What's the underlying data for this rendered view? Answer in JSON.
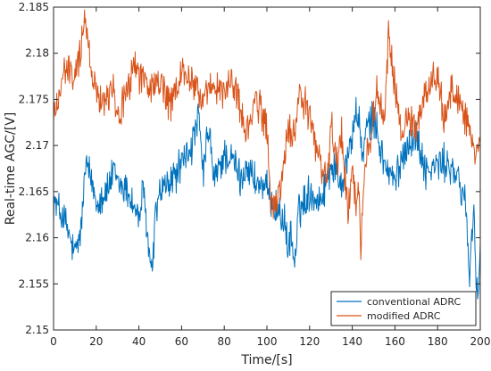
{
  "chart_data": {
    "type": "line",
    "xlabel": "Time/[s]",
    "ylabel": "Real-time AGC/[V]",
    "xlim": [
      0,
      200
    ],
    "ylim": [
      2.15,
      2.185
    ],
    "xticks": [
      0,
      20,
      40,
      60,
      80,
      100,
      120,
      140,
      160,
      180,
      200
    ],
    "yticks": [
      2.15,
      2.155,
      2.16,
      2.165,
      2.17,
      2.175,
      2.18,
      2.185
    ],
    "xtick_labels": [
      "0",
      "20",
      "40",
      "60",
      "80",
      "100",
      "120",
      "140",
      "160",
      "180",
      "200"
    ],
    "ytick_labels": [
      "2.15",
      "2.155",
      "2.16",
      "2.165",
      "2.17",
      "2.175",
      "2.18",
      "2.185"
    ],
    "grid": false,
    "legend_position": "bottom-right",
    "series": [
      {
        "name": "conventional ADRC",
        "color": "#0072BD",
        "x": [
          0,
          5,
          10,
          13,
          15,
          18,
          20,
          25,
          28,
          30,
          35,
          40,
          42,
          45,
          46,
          48,
          50,
          55,
          60,
          65,
          68,
          70,
          73,
          75,
          80,
          85,
          88,
          90,
          95,
          100,
          105,
          108,
          110,
          111,
          113,
          115,
          120,
          125,
          130,
          135,
          140,
          142,
          145,
          147,
          150,
          155,
          160,
          165,
          170,
          175,
          180,
          185,
          190,
          193,
          195,
          197,
          198,
          199,
          200
        ],
        "y": [
          2.164,
          2.162,
          2.158,
          2.161,
          2.168,
          2.166,
          2.164,
          2.165,
          2.167,
          2.166,
          2.165,
          2.162,
          2.165,
          2.158,
          2.156,
          2.163,
          2.165,
          2.166,
          2.168,
          2.17,
          2.173,
          2.167,
          2.172,
          2.166,
          2.169,
          2.168,
          2.166,
          2.168,
          2.166,
          2.165,
          2.163,
          2.162,
          2.158,
          2.161,
          2.157,
          2.163,
          2.165,
          2.164,
          2.168,
          2.166,
          2.171,
          2.174,
          2.169,
          2.172,
          2.173,
          2.168,
          2.166,
          2.17,
          2.171,
          2.167,
          2.168,
          2.168,
          2.166,
          2.164,
          2.156,
          2.164,
          2.155,
          2.154,
          2.158
        ]
      },
      {
        "name": "modified ADRC",
        "color": "#D95319",
        "x": [
          0,
          3,
          5,
          8,
          10,
          13,
          14,
          15,
          16,
          18,
          20,
          25,
          28,
          30,
          35,
          38,
          40,
          45,
          50,
          55,
          60,
          65,
          70,
          75,
          80,
          85,
          90,
          95,
          100,
          102,
          105,
          108,
          110,
          112,
          115,
          120,
          125,
          128,
          130,
          133,
          135,
          138,
          140,
          142,
          143,
          144,
          145,
          147,
          150,
          152,
          155,
          157,
          160,
          163,
          165,
          170,
          175,
          180,
          183,
          185,
          190,
          195,
          198,
          200
        ],
        "y": [
          2.173,
          2.176,
          2.178,
          2.178,
          2.177,
          2.181,
          2.184,
          2.183,
          2.181,
          2.178,
          2.176,
          2.175,
          2.177,
          2.173,
          2.176,
          2.179,
          2.178,
          2.176,
          2.177,
          2.174,
          2.178,
          2.177,
          2.175,
          2.176,
          2.176,
          2.177,
          2.171,
          2.175,
          2.172,
          2.163,
          2.164,
          2.168,
          2.172,
          2.17,
          2.176,
          2.173,
          2.168,
          2.166,
          2.172,
          2.168,
          2.171,
          2.163,
          2.167,
          2.164,
          2.166,
          2.159,
          2.164,
          2.17,
          2.173,
          2.176,
          2.172,
          2.182,
          2.176,
          2.171,
          2.173,
          2.172,
          2.176,
          2.178,
          2.172,
          2.176,
          2.175,
          2.172,
          2.168,
          2.17
        ]
      }
    ]
  }
}
